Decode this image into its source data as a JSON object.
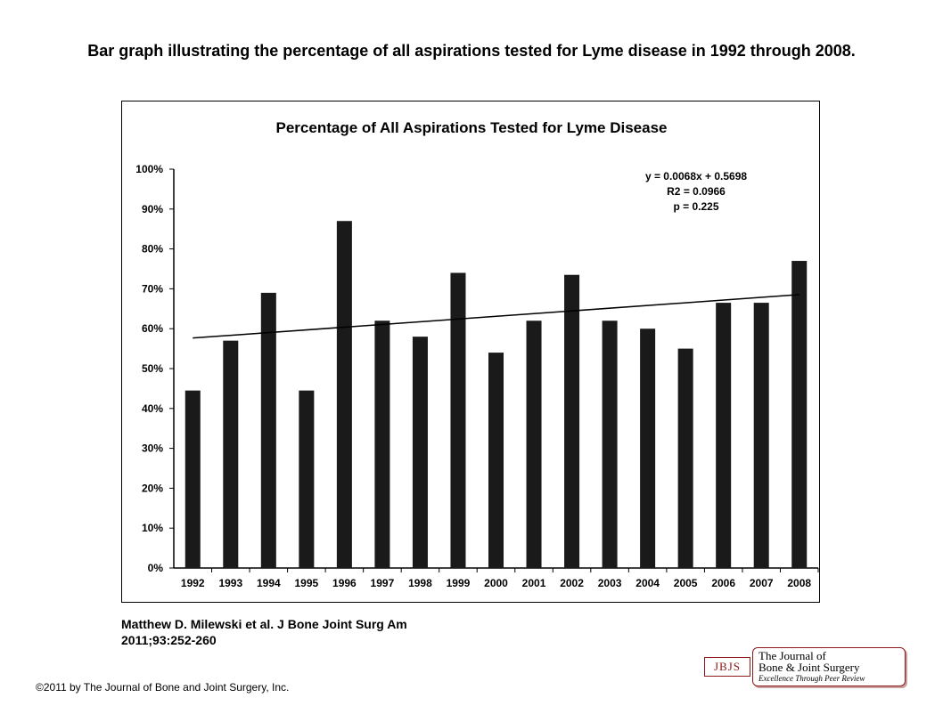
{
  "page": {
    "title": "Bar graph illustrating the percentage of all aspirations tested for Lyme disease in 1992 through 2008.",
    "citation_line1": "Matthew D. Milewski et al. J Bone Joint Surg Am",
    "citation_line2": "2011;93:252-260",
    "copyright": "©2011 by The Journal of Bone and Joint Surgery, Inc."
  },
  "logo": {
    "badge": "JBJS",
    "line1": "The Journal of",
    "line2": "Bone & Joint Surgery",
    "tagline": "Excellence Through Peer Review",
    "color": "#8b1a1a"
  },
  "chart_data": {
    "type": "bar",
    "title": "Percentage of All Aspirations Tested for Lyme Disease",
    "xlabel": "",
    "ylabel": "",
    "categories": [
      "1992",
      "1993",
      "1994",
      "1995",
      "1996",
      "1997",
      "1998",
      "1999",
      "2000",
      "2001",
      "2002",
      "2003",
      "2004",
      "2005",
      "2006",
      "2007",
      "2008"
    ],
    "values": [
      44.5,
      57,
      69,
      44.5,
      87,
      62,
      58,
      74,
      54,
      62,
      73.5,
      62,
      60,
      55,
      66.5,
      66.5,
      77
    ],
    "ylim": [
      0,
      100
    ],
    "yticks": [
      "0%",
      "10%",
      "20%",
      "30%",
      "40%",
      "50%",
      "60%",
      "70%",
      "80%",
      "90%",
      "100%"
    ],
    "bar_color": "#1a1a1a",
    "grid": false,
    "trendline": {
      "slope": 0.0068,
      "intercept": 0.5698,
      "equation": "y = 0.0068x + 0.5698",
      "r2": "R2 = 0.0966",
      "p": "p = 0.225"
    }
  }
}
